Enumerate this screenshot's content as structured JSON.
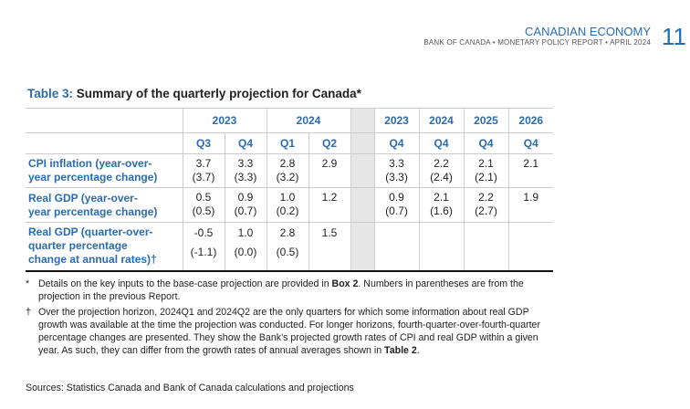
{
  "header": {
    "section": "CANADIAN ECONOMY",
    "subtitle": "BANK OF CANADA • MONETARY POLICY REPORT • APRIL 2024",
    "page": "11"
  },
  "table": {
    "label": "Table 3:",
    "title": "Summary of the quarterly projection for Canada*",
    "quarterly_years": [
      "2023",
      "2024"
    ],
    "quarters": [
      "Q3",
      "Q4",
      "Q1",
      "Q2"
    ],
    "annual_years": [
      "2023",
      "2024",
      "2025",
      "2026"
    ],
    "annual_quarters": [
      "Q4",
      "Q4",
      "Q4",
      "Q4"
    ],
    "rows": [
      {
        "label": [
          "CPI inflation (year-over-",
          "year percentage change)"
        ],
        "cells": [
          [
            "3.7",
            "(3.7)"
          ],
          [
            "3.3",
            "(3.3)"
          ],
          [
            "2.8",
            "(3.2)"
          ],
          [
            "2.9"
          ],
          [
            "3.3",
            "(3.3)"
          ],
          [
            "2.2",
            "(2.4)"
          ],
          [
            "2.1",
            "(2.1)"
          ],
          [
            "2.1"
          ]
        ]
      },
      {
        "label": [
          "Real GDP (year-over-",
          "year percentage change)"
        ],
        "cells": [
          [
            "0.5",
            "(0.5)"
          ],
          [
            "0.9",
            "(0.7)"
          ],
          [
            "1.0",
            "(0.2)"
          ],
          [
            "1.2"
          ],
          [
            "0.9",
            "(0.7)"
          ],
          [
            "2.1",
            "(1.6)"
          ],
          [
            "2.2",
            "(2.7)"
          ],
          [
            "1.9"
          ]
        ]
      },
      {
        "label": [
          "Real GDP (quarter-over-",
          "quarter percentage",
          "change at annual rates)†"
        ],
        "cells": [
          [
            "-0.5",
            "(-1.1)"
          ],
          [
            "1.0",
            "(0.0)"
          ],
          [
            "2.8",
            "(0.5)"
          ],
          [
            "1.5"
          ],
          [],
          [],
          [],
          []
        ]
      }
    ]
  },
  "notes": [
    {
      "mark": "*",
      "parts": [
        {
          "text": "Details on the key inputs to the base-case projection are provided in "
        },
        {
          "text": "Box 2",
          "bold": true
        },
        {
          "text": ". Numbers in parentheses are from the projection in the previous Report."
        }
      ]
    },
    {
      "mark": "†",
      "parts": [
        {
          "text": "Over the projection horizon, 2024Q1 and 2024Q2 are the only quarters for which some information about real GDP growth was available at the time the projection was conducted. For longer horizons, fourth-quarter-over-fourth-quarter percentage changes are presented. They show the Bank’s projected growth rates of CPI and real GDP within a given year. As such, they can differ from the growth rates of annual averages shown in "
        },
        {
          "text": "Table 2",
          "bold": true
        },
        {
          "text": "."
        }
      ]
    }
  ],
  "source": "Sources: Statistics Canada and Bank of Canada calculations and projections"
}
